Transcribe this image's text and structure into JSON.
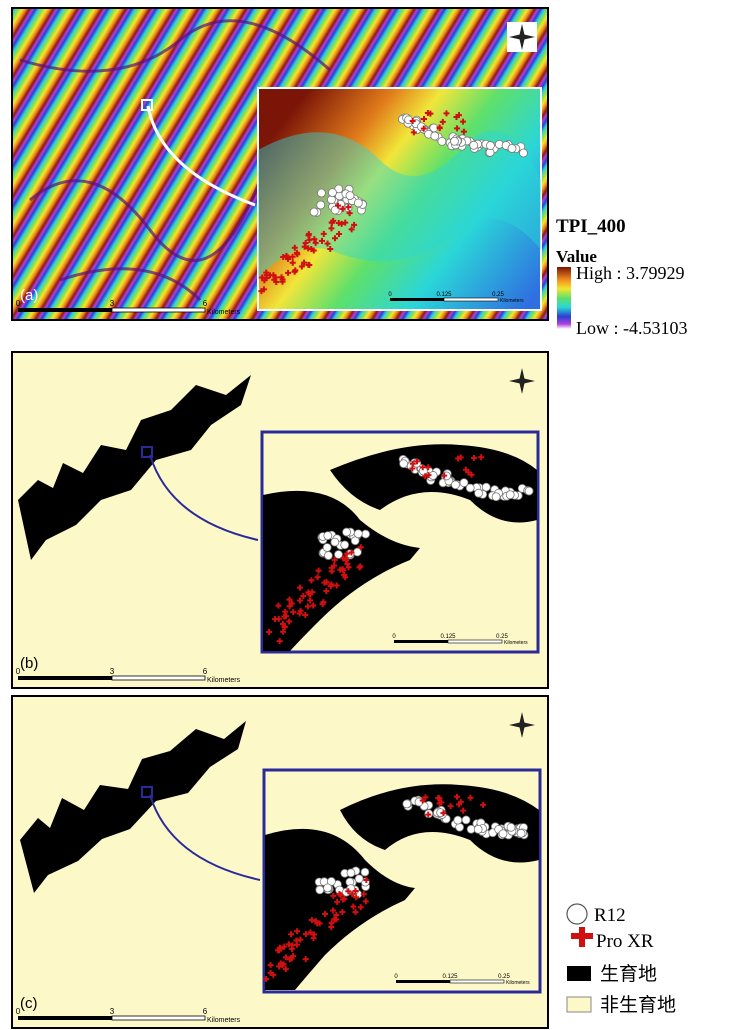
{
  "legend_tpi": {
    "title": "TPI_400",
    "subtitle": "Value",
    "high": "High : 3.79929",
    "low": "Low : -4.53103"
  },
  "panels": [
    {
      "label": "(a)",
      "scale": [
        "0",
        "3",
        "6"
      ],
      "unit": "Kilometers",
      "inset_scale": [
        "0",
        "0.125",
        "0.25"
      ],
      "inset_unit": "Kilometers"
    },
    {
      "label": "(b)",
      "scale": [
        "0",
        "3",
        "6"
      ],
      "unit": "Kilometers",
      "inset_scale": [
        "0",
        "0.125",
        "0.25"
      ],
      "inset_unit": "Kilometers"
    },
    {
      "label": "(c)",
      "scale": [
        "0",
        "3",
        "6"
      ],
      "unit": "Kilometers",
      "inset_scale": [
        "0",
        "0.125",
        "0.25"
      ],
      "inset_unit": "Kilometers"
    }
  ],
  "legend_points": [
    "R12",
    "Pro XR",
    "生育地",
    "非生育地"
  ]
}
